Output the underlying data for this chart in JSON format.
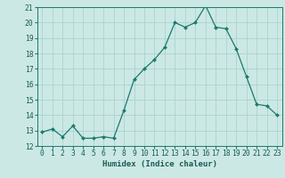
{
  "x": [
    0,
    1,
    2,
    3,
    4,
    5,
    6,
    7,
    8,
    9,
    10,
    11,
    12,
    13,
    14,
    15,
    16,
    17,
    18,
    19,
    20,
    21,
    22,
    23
  ],
  "y": [
    12.9,
    13.1,
    12.6,
    13.3,
    12.5,
    12.5,
    12.6,
    12.5,
    14.3,
    16.3,
    17.0,
    17.6,
    18.4,
    20.0,
    19.7,
    20.0,
    21.1,
    19.7,
    19.6,
    18.3,
    16.5,
    14.7,
    14.6,
    14.0
  ],
  "xlabel": "Humidex (Indice chaleur)",
  "ylim": [
    12,
    21
  ],
  "xlim": [
    -0.5,
    23.5
  ],
  "yticks": [
    12,
    13,
    14,
    15,
    16,
    17,
    18,
    19,
    20,
    21
  ],
  "xticks": [
    0,
    1,
    2,
    3,
    4,
    5,
    6,
    7,
    8,
    9,
    10,
    11,
    12,
    13,
    14,
    15,
    16,
    17,
    18,
    19,
    20,
    21,
    22,
    23
  ],
  "line_color": "#1a7a6e",
  "marker_color": "#1a7a6e",
  "bg_color": "#cce8e4",
  "grid_color": "#aad4cf",
  "font_color": "#1a5c55",
  "xlabel_fontsize": 6.5,
  "tick_fontsize": 5.8
}
